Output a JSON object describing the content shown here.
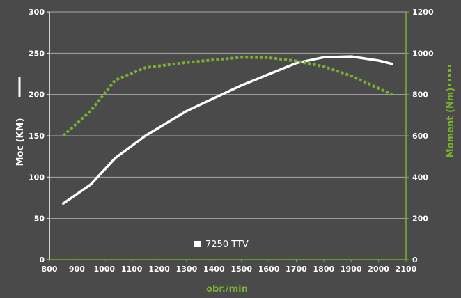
{
  "chart_data": {
    "type": "line",
    "x_ticks": [
      "800",
      "900",
      "1000",
      "1100",
      "1200",
      "1300",
      "1400",
      "1500",
      "1600",
      "1700",
      "1800",
      "1900",
      "2000",
      "2100"
    ],
    "xlim": [
      800,
      2100
    ],
    "xlabel": "obr./min",
    "y_left": {
      "label": "Moc (KM)",
      "ticks": [
        "0",
        "50",
        "100",
        "150",
        "200",
        "250",
        "300"
      ],
      "lim": [
        0,
        300
      ]
    },
    "y_right": {
      "label": "Moment (Nm)",
      "ticks": [
        "0",
        "200",
        "400",
        "600",
        "800",
        "1000",
        "1200"
      ],
      "lim": [
        0,
        1200
      ]
    },
    "grid": true,
    "legend": {
      "position": "bottom-center",
      "entry": "7250 TTV"
    },
    "series": [
      {
        "name": "7250 TTV",
        "axis": "left",
        "style": "solid",
        "color": "#ffffff",
        "x": [
          850,
          950,
          1040,
          1150,
          1300,
          1500,
          1700,
          1800,
          1900,
          2000,
          2050
        ],
        "y": [
          68,
          91,
          123,
          150,
          180,
          211,
          238,
          245,
          246,
          241,
          237
        ]
      },
      {
        "name": "",
        "axis": "right",
        "style": "dashed",
        "color": "#7ab030",
        "x": [
          850,
          950,
          1040,
          1150,
          1300,
          1500,
          1600,
          1700,
          1800,
          1900,
          2000,
          2050
        ],
        "y": [
          600,
          720,
          870,
          930,
          955,
          980,
          978,
          962,
          935,
          890,
          830,
          800
        ]
      }
    ],
    "colors": {
      "background": "#4a4a4a",
      "torque_axis": "#7ab030",
      "power_axis": "#ffffff"
    }
  }
}
